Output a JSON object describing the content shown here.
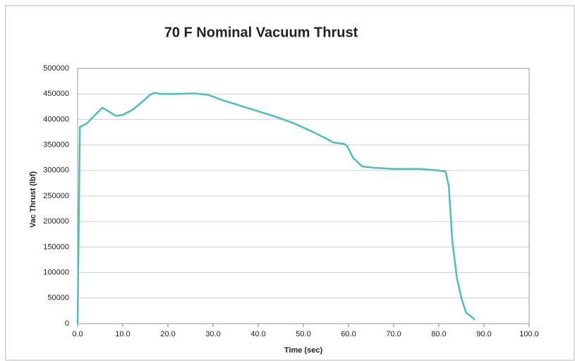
{
  "chart_data": {
    "type": "line",
    "title": "70 F Nominal Vacuum Thrust",
    "x_label": "Time (sec)",
    "y_label": "Vac Thrust (lbf)",
    "x": [
      0,
      0.5,
      2,
      4,
      5.5,
      7,
      8.5,
      10,
      12,
      14,
      16,
      17,
      18.5,
      22,
      26,
      29,
      32,
      36,
      40,
      44,
      48,
      52,
      55,
      56.5,
      59,
      59.7,
      61,
      63,
      66,
      70,
      76,
      80,
      81.5,
      82.2,
      83,
      84,
      85,
      86,
      88
    ],
    "series": [
      {
        "name": "Vac Thrust",
        "color": "#4fbdbd",
        "values": [
          0,
          385000,
          392000,
          410000,
          423000,
          415000,
          407000,
          409000,
          418000,
          432000,
          448000,
          452000,
          450000,
          450000,
          451000,
          448000,
          438000,
          427000,
          416000,
          405000,
          392000,
          376000,
          363000,
          355000,
          352000,
          348000,
          325000,
          308000,
          305000,
          303000,
          303000,
          300000,
          298000,
          270000,
          160000,
          90000,
          50000,
          22000,
          8000
        ]
      }
    ],
    "xlim": [
      0,
      100
    ],
    "xticks": [
      {
        "value": 0,
        "label": "0.0"
      },
      {
        "value": 10,
        "label": "10.0"
      },
      {
        "value": 20,
        "label": "20.0"
      },
      {
        "value": 30,
        "label": "30.0"
      },
      {
        "value": 40,
        "label": "40.0"
      },
      {
        "value": 50,
        "label": "50.0"
      },
      {
        "value": 60,
        "label": "60.0"
      },
      {
        "value": 70,
        "label": "70.0"
      },
      {
        "value": 80,
        "label": "80.0"
      },
      {
        "value": 90,
        "label": "90.0"
      },
      {
        "value": 100,
        "label": "100.0"
      }
    ],
    "ylim": [
      0,
      500000
    ],
    "yticks": [
      0,
      50000,
      100000,
      150000,
      200000,
      250000,
      300000,
      350000,
      400000,
      450000,
      500000
    ],
    "grid": true
  }
}
